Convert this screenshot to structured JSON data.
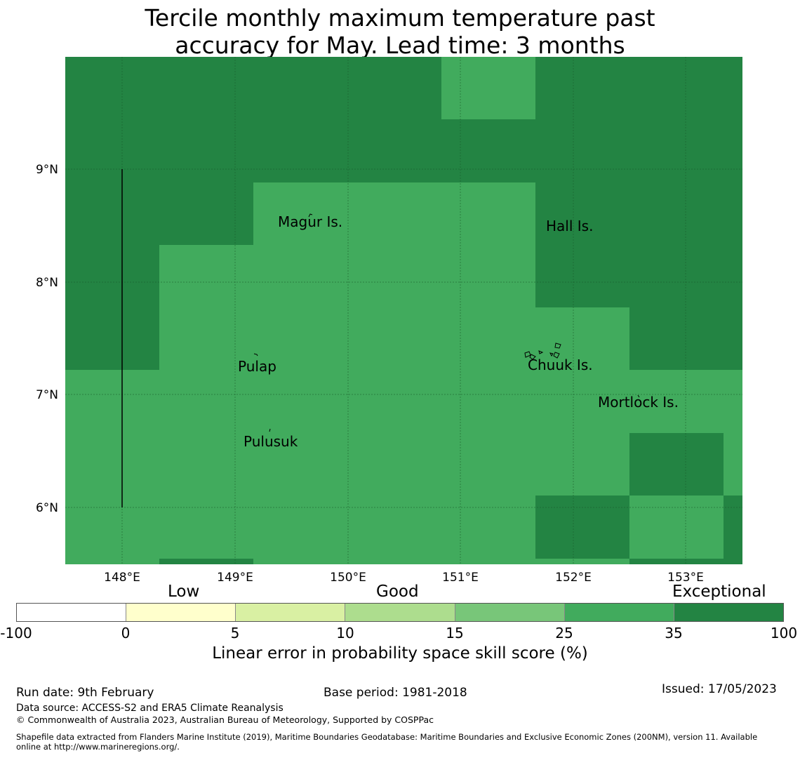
{
  "title_line1": "Tercile monthly maximum temperature past",
  "title_line2": "accuracy for May. Lead time: 3 months",
  "map": {
    "lon_ticks": [
      "148°E",
      "149°E",
      "150°E",
      "151°E",
      "152°E",
      "153°E"
    ],
    "lat_ticks": [
      "9°N",
      "8°N",
      "7°N",
      "6°N"
    ],
    "colors": {
      "good": "#41ab5d",
      "exceptional": "#238443",
      "grid": "#1a5a2a"
    },
    "places": [
      {
        "name": "Magur Is.",
        "id": "place-magur"
      },
      {
        "name": "Hall Is.",
        "id": "place-hall"
      },
      {
        "name": "Pulap",
        "id": "place-pulap"
      },
      {
        "name": "Chuuk Is.",
        "id": "place-chuuk"
      },
      {
        "name": "Mortlock Is.",
        "id": "place-mortlock"
      },
      {
        "name": "Pulusuk",
        "id": "place-pulusuk"
      }
    ]
  },
  "colorbar": {
    "categories": [
      "Low",
      "Good",
      "Exceptional"
    ],
    "ticks": [
      "-100",
      "0",
      "5",
      "10",
      "15",
      "25",
      "35",
      "100"
    ],
    "colors": [
      "#ffffff",
      "#ffffcc",
      "#d9f0a3",
      "#addd8e",
      "#78c679",
      "#41ab5d",
      "#238443"
    ],
    "title": "Linear error in probability space skill score (%)"
  },
  "footer": {
    "run_date": "Run date: 9th February",
    "base_period": "Base period: 1981-2018",
    "issued": "Issued: 17/05/2023",
    "data_source": "Data source: ACCESS-S2 and ERA5 Climate Reanalysis",
    "copyright": "© Commonwealth of Australia 2023, Australian Bureau of Meteorology, Supported by COSPPac",
    "shapefile_line1": "Shapefile data extracted from Flanders Marine Institute (2019), Maritime Boundaries Geodatabase: Maritime Boundaries and Exclusive Economic Zones (200NM), version 11. Available",
    "shapefile_line2": "online at http://www.marineregions.org/."
  }
}
